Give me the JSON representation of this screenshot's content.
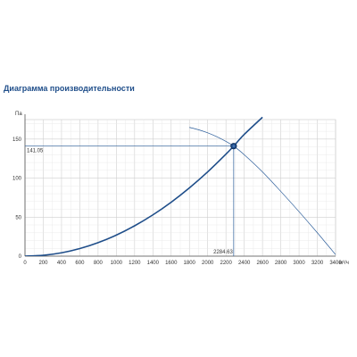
{
  "page": {
    "title": "Диаграмма производительности"
  },
  "chart_data": {
    "type": "line",
    "xlim": [
      0,
      3400
    ],
    "ylim": [
      0,
      175
    ],
    "ylabel": "Па",
    "x_unit": "м³/ч",
    "x_ticks": [
      0,
      200,
      400,
      600,
      800,
      1000,
      1200,
      1400,
      1600,
      1800,
      2000,
      2200,
      2400,
      2600,
      2800,
      3000,
      3200,
      3400
    ],
    "y_ticks": [
      0,
      50,
      100,
      150
    ],
    "grid": true,
    "series": [
      {
        "role": "system-curve",
        "color": "#1f4e8a",
        "x": [
          0,
          200,
          400,
          600,
          800,
          1000,
          1200,
          1400,
          1600,
          1800,
          2000,
          2200,
          2284.63,
          2400,
          2600
        ],
        "y": [
          0,
          1.1,
          4.3,
          9.7,
          17.3,
          27.0,
          38.9,
          52.9,
          69.1,
          87.5,
          108.0,
          130.7,
          141.05,
          156.0,
          178.0
        ]
      },
      {
        "role": "fan-curve",
        "color": "#2b5d9a",
        "x": [
          1800,
          1900,
          2000,
          2100,
          2200,
          2284.63,
          2400,
          2600,
          2800,
          3000,
          3200,
          3300,
          3400
        ],
        "y": [
          165,
          162,
          158,
          153,
          147,
          141.05,
          130,
          108,
          83,
          57,
          30,
          16,
          2
        ]
      }
    ],
    "operating_point": {
      "x": 2284.63,
      "y": 141.05,
      "x_label": "2284.63",
      "y_label": "141.05"
    }
  }
}
